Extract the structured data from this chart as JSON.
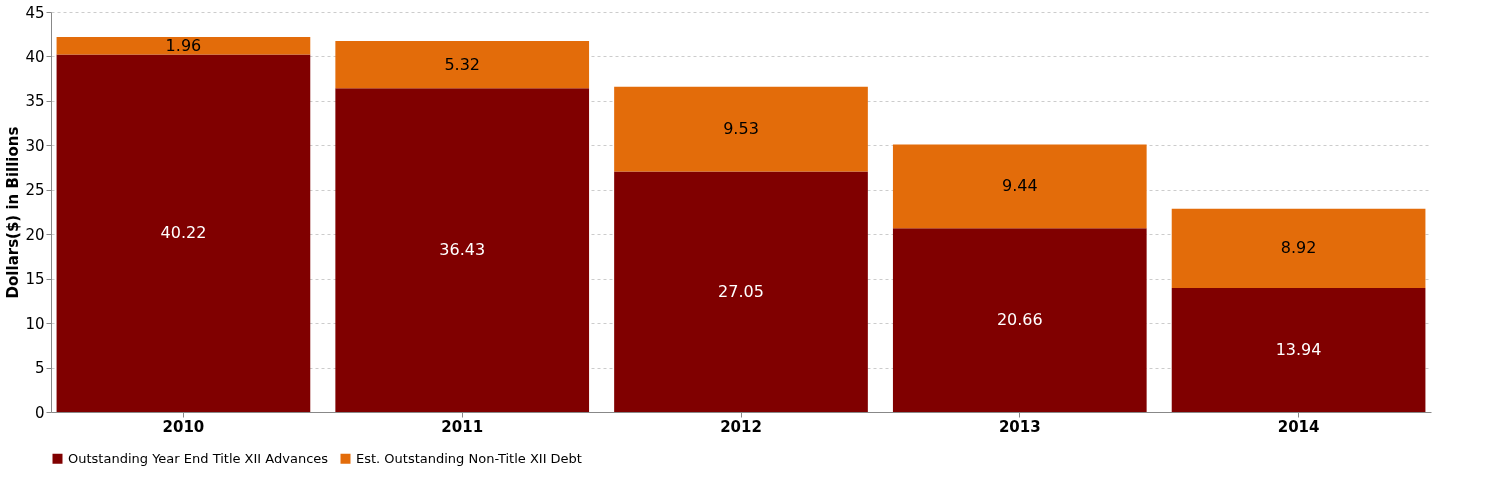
{
  "chart_data": {
    "type": "bar",
    "stacked": true,
    "ylabel": "Dollars($) in Billions",
    "categories": [
      "2010",
      "2011",
      "2012",
      "2013",
      "2014"
    ],
    "series": [
      {
        "name": "Outstanding Year End Title XII Advances",
        "color": "#800000",
        "values": [
          40.22,
          36.43,
          27.05,
          20.66,
          13.94
        ]
      },
      {
        "name": "Est. Outstanding Non-Title XII Debt",
        "color": "#e36c0a",
        "values": [
          1.96,
          5.32,
          9.53,
          9.44,
          8.92
        ]
      }
    ],
    "ylim": [
      0,
      45
    ],
    "yticks": [
      0,
      5,
      10,
      15,
      20,
      25,
      30,
      35,
      40,
      45
    ],
    "grid": "y",
    "legend": "bottom",
    "data_labels": true
  }
}
